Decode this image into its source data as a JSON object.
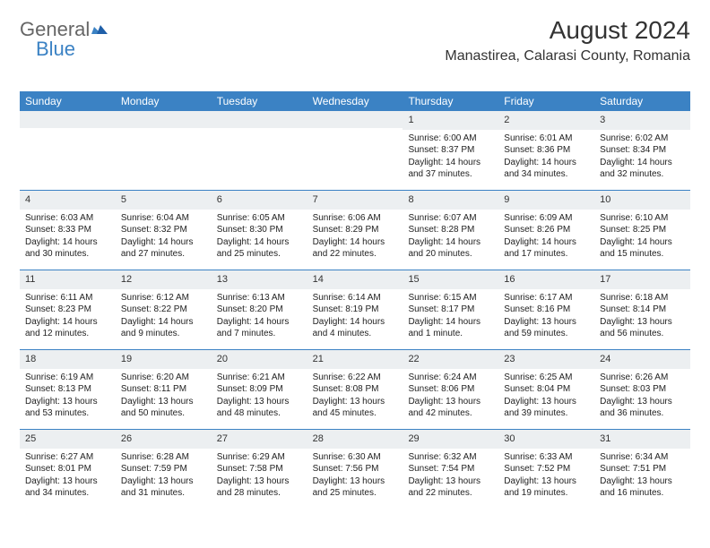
{
  "logo": {
    "text1": "General",
    "text2": "Blue"
  },
  "title": "August 2024",
  "location": "Manastirea, Calarasi County, Romania",
  "colors": {
    "header_bg": "#3b82c4",
    "daynum_bg": "#eceff1",
    "text": "#222222",
    "title_text": "#333333"
  },
  "dayNames": [
    "Sunday",
    "Monday",
    "Tuesday",
    "Wednesday",
    "Thursday",
    "Friday",
    "Saturday"
  ],
  "weeks": [
    [
      {
        "empty": true
      },
      {
        "empty": true
      },
      {
        "empty": true
      },
      {
        "empty": true
      },
      {
        "day": "1",
        "sunrise": "Sunrise: 6:00 AM",
        "sunset": "Sunset: 8:37 PM",
        "dl1": "Daylight: 14 hours",
        "dl2": "and 37 minutes."
      },
      {
        "day": "2",
        "sunrise": "Sunrise: 6:01 AM",
        "sunset": "Sunset: 8:36 PM",
        "dl1": "Daylight: 14 hours",
        "dl2": "and 34 minutes."
      },
      {
        "day": "3",
        "sunrise": "Sunrise: 6:02 AM",
        "sunset": "Sunset: 8:34 PM",
        "dl1": "Daylight: 14 hours",
        "dl2": "and 32 minutes."
      }
    ],
    [
      {
        "day": "4",
        "sunrise": "Sunrise: 6:03 AM",
        "sunset": "Sunset: 8:33 PM",
        "dl1": "Daylight: 14 hours",
        "dl2": "and 30 minutes."
      },
      {
        "day": "5",
        "sunrise": "Sunrise: 6:04 AM",
        "sunset": "Sunset: 8:32 PM",
        "dl1": "Daylight: 14 hours",
        "dl2": "and 27 minutes."
      },
      {
        "day": "6",
        "sunrise": "Sunrise: 6:05 AM",
        "sunset": "Sunset: 8:30 PM",
        "dl1": "Daylight: 14 hours",
        "dl2": "and 25 minutes."
      },
      {
        "day": "7",
        "sunrise": "Sunrise: 6:06 AM",
        "sunset": "Sunset: 8:29 PM",
        "dl1": "Daylight: 14 hours",
        "dl2": "and 22 minutes."
      },
      {
        "day": "8",
        "sunrise": "Sunrise: 6:07 AM",
        "sunset": "Sunset: 8:28 PM",
        "dl1": "Daylight: 14 hours",
        "dl2": "and 20 minutes."
      },
      {
        "day": "9",
        "sunrise": "Sunrise: 6:09 AM",
        "sunset": "Sunset: 8:26 PM",
        "dl1": "Daylight: 14 hours",
        "dl2": "and 17 minutes."
      },
      {
        "day": "10",
        "sunrise": "Sunrise: 6:10 AM",
        "sunset": "Sunset: 8:25 PM",
        "dl1": "Daylight: 14 hours",
        "dl2": "and 15 minutes."
      }
    ],
    [
      {
        "day": "11",
        "sunrise": "Sunrise: 6:11 AM",
        "sunset": "Sunset: 8:23 PM",
        "dl1": "Daylight: 14 hours",
        "dl2": "and 12 minutes."
      },
      {
        "day": "12",
        "sunrise": "Sunrise: 6:12 AM",
        "sunset": "Sunset: 8:22 PM",
        "dl1": "Daylight: 14 hours",
        "dl2": "and 9 minutes."
      },
      {
        "day": "13",
        "sunrise": "Sunrise: 6:13 AM",
        "sunset": "Sunset: 8:20 PM",
        "dl1": "Daylight: 14 hours",
        "dl2": "and 7 minutes."
      },
      {
        "day": "14",
        "sunrise": "Sunrise: 6:14 AM",
        "sunset": "Sunset: 8:19 PM",
        "dl1": "Daylight: 14 hours",
        "dl2": "and 4 minutes."
      },
      {
        "day": "15",
        "sunrise": "Sunrise: 6:15 AM",
        "sunset": "Sunset: 8:17 PM",
        "dl1": "Daylight: 14 hours",
        "dl2": "and 1 minute."
      },
      {
        "day": "16",
        "sunrise": "Sunrise: 6:17 AM",
        "sunset": "Sunset: 8:16 PM",
        "dl1": "Daylight: 13 hours",
        "dl2": "and 59 minutes."
      },
      {
        "day": "17",
        "sunrise": "Sunrise: 6:18 AM",
        "sunset": "Sunset: 8:14 PM",
        "dl1": "Daylight: 13 hours",
        "dl2": "and 56 minutes."
      }
    ],
    [
      {
        "day": "18",
        "sunrise": "Sunrise: 6:19 AM",
        "sunset": "Sunset: 8:13 PM",
        "dl1": "Daylight: 13 hours",
        "dl2": "and 53 minutes."
      },
      {
        "day": "19",
        "sunrise": "Sunrise: 6:20 AM",
        "sunset": "Sunset: 8:11 PM",
        "dl1": "Daylight: 13 hours",
        "dl2": "and 50 minutes."
      },
      {
        "day": "20",
        "sunrise": "Sunrise: 6:21 AM",
        "sunset": "Sunset: 8:09 PM",
        "dl1": "Daylight: 13 hours",
        "dl2": "and 48 minutes."
      },
      {
        "day": "21",
        "sunrise": "Sunrise: 6:22 AM",
        "sunset": "Sunset: 8:08 PM",
        "dl1": "Daylight: 13 hours",
        "dl2": "and 45 minutes."
      },
      {
        "day": "22",
        "sunrise": "Sunrise: 6:24 AM",
        "sunset": "Sunset: 8:06 PM",
        "dl1": "Daylight: 13 hours",
        "dl2": "and 42 minutes."
      },
      {
        "day": "23",
        "sunrise": "Sunrise: 6:25 AM",
        "sunset": "Sunset: 8:04 PM",
        "dl1": "Daylight: 13 hours",
        "dl2": "and 39 minutes."
      },
      {
        "day": "24",
        "sunrise": "Sunrise: 6:26 AM",
        "sunset": "Sunset: 8:03 PM",
        "dl1": "Daylight: 13 hours",
        "dl2": "and 36 minutes."
      }
    ],
    [
      {
        "day": "25",
        "sunrise": "Sunrise: 6:27 AM",
        "sunset": "Sunset: 8:01 PM",
        "dl1": "Daylight: 13 hours",
        "dl2": "and 34 minutes."
      },
      {
        "day": "26",
        "sunrise": "Sunrise: 6:28 AM",
        "sunset": "Sunset: 7:59 PM",
        "dl1": "Daylight: 13 hours",
        "dl2": "and 31 minutes."
      },
      {
        "day": "27",
        "sunrise": "Sunrise: 6:29 AM",
        "sunset": "Sunset: 7:58 PM",
        "dl1": "Daylight: 13 hours",
        "dl2": "and 28 minutes."
      },
      {
        "day": "28",
        "sunrise": "Sunrise: 6:30 AM",
        "sunset": "Sunset: 7:56 PM",
        "dl1": "Daylight: 13 hours",
        "dl2": "and 25 minutes."
      },
      {
        "day": "29",
        "sunrise": "Sunrise: 6:32 AM",
        "sunset": "Sunset: 7:54 PM",
        "dl1": "Daylight: 13 hours",
        "dl2": "and 22 minutes."
      },
      {
        "day": "30",
        "sunrise": "Sunrise: 6:33 AM",
        "sunset": "Sunset: 7:52 PM",
        "dl1": "Daylight: 13 hours",
        "dl2": "and 19 minutes."
      },
      {
        "day": "31",
        "sunrise": "Sunrise: 6:34 AM",
        "sunset": "Sunset: 7:51 PM",
        "dl1": "Daylight: 13 hours",
        "dl2": "and 16 minutes."
      }
    ]
  ]
}
